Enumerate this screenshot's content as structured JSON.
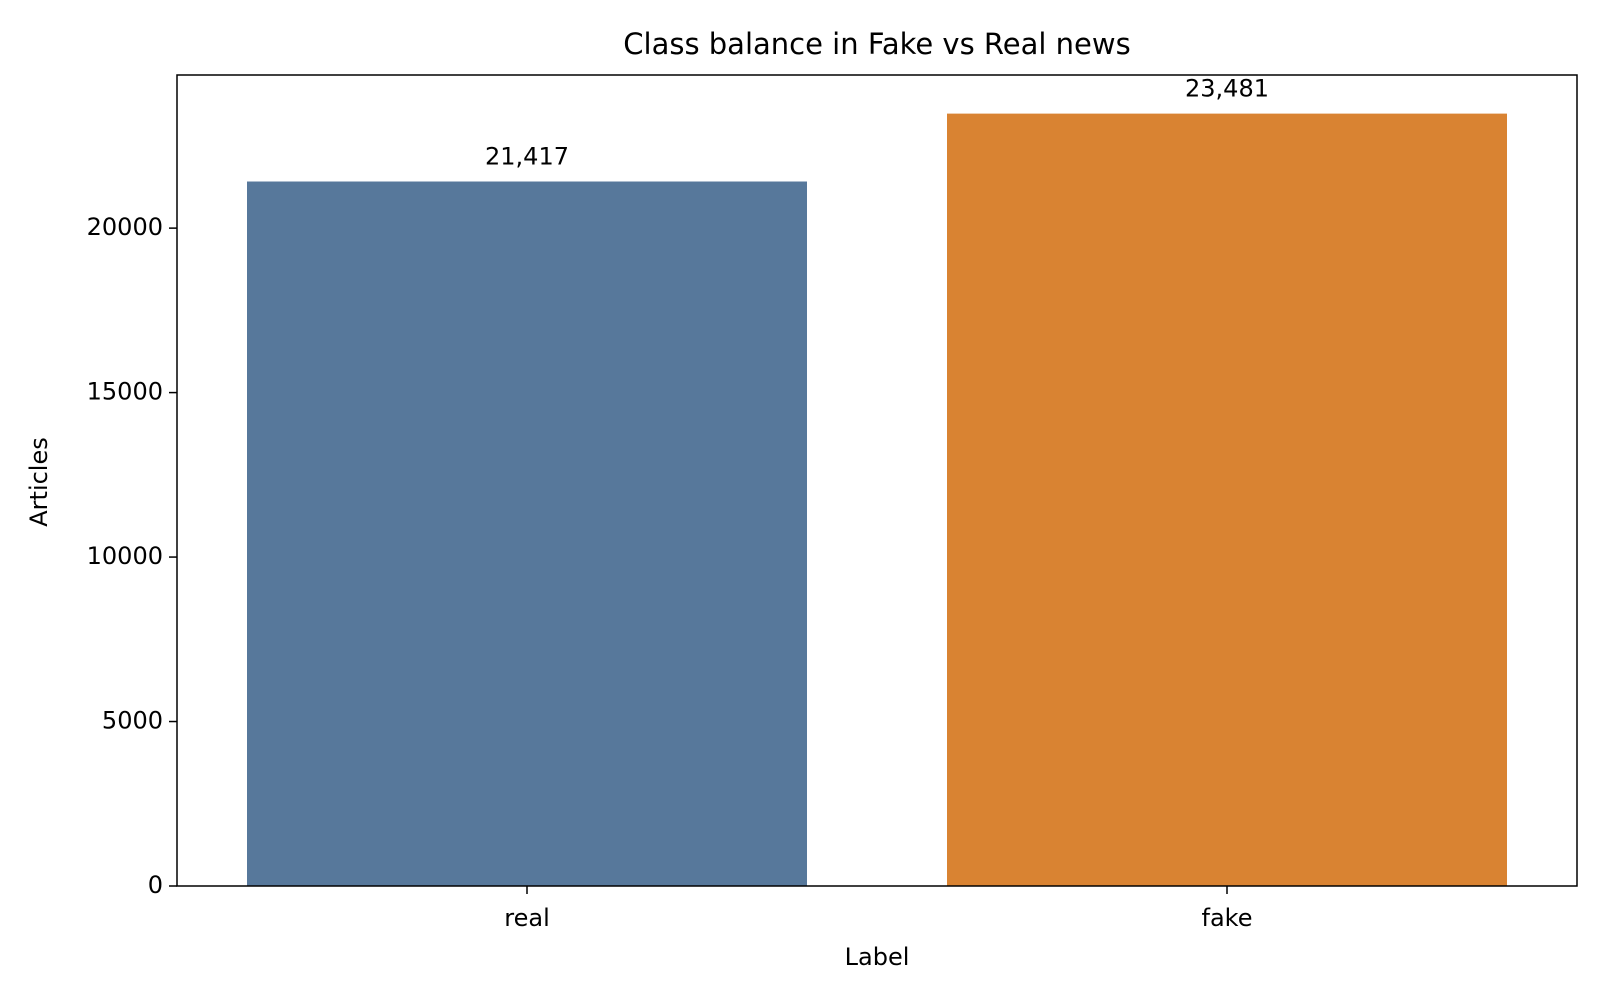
{
  "chart_data": {
    "type": "bar",
    "title": "Class balance in Fake vs Real news",
    "x_label": "Label",
    "y_label": "Articles",
    "categories": [
      "real",
      "fake"
    ],
    "values": [
      21417,
      23481
    ],
    "value_labels": [
      "21,417",
      "23,481"
    ],
    "colors": [
      "#57789b",
      "#d98332"
    ],
    "ylim": [
      0,
      24655
    ],
    "yticks": [
      0,
      5000,
      10000,
      15000,
      20000
    ],
    "grid": false
  }
}
